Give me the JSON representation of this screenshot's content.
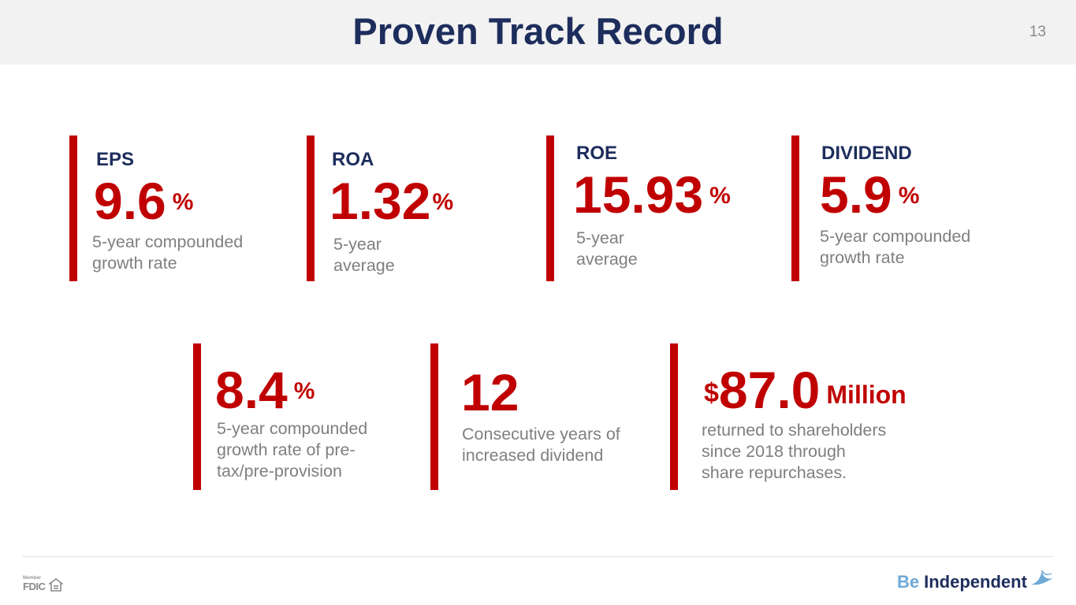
{
  "header": {
    "title": "Proven Track Record",
    "page_number": "13"
  },
  "metrics": [
    {
      "label": "EPS",
      "value": "9.6",
      "unit": "%",
      "desc_lines": [
        "5-year compounded",
        "growth rate"
      ]
    },
    {
      "label": "ROA",
      "value": "1.32",
      "unit": "%",
      "desc_lines": [
        "5-year",
        "average"
      ]
    },
    {
      "label": "ROE",
      "value": "15.93",
      "unit": "%",
      "desc_lines": [
        "5-year",
        "average"
      ]
    },
    {
      "label": "DIVIDEND",
      "value": "5.9",
      "unit": "%",
      "desc_lines": [
        "5-year compounded",
        "growth rate"
      ]
    },
    {
      "value": "8.4",
      "unit": "%",
      "desc_lines": [
        "5-year compounded",
        "growth rate of pre-",
        "tax/pre-provision"
      ]
    },
    {
      "value": "12",
      "desc_lines": [
        "Consecutive years of",
        "increased dividend"
      ]
    },
    {
      "prefix": "$",
      "value": "87.0",
      "unit": "Million",
      "desc_lines": [
        "returned to shareholders",
        "since 2018 through",
        "share repurchases."
      ]
    }
  ],
  "footer": {
    "fdic_member": "Member",
    "fdic_word": "FDIC",
    "brand_be": "Be",
    "brand_independent": "Independent"
  },
  "colors": {
    "accent_red": "#c00000",
    "navy": "#1d2d5c",
    "gray_text": "#7f7f7f",
    "brand_blue": "#6fa9d6"
  }
}
